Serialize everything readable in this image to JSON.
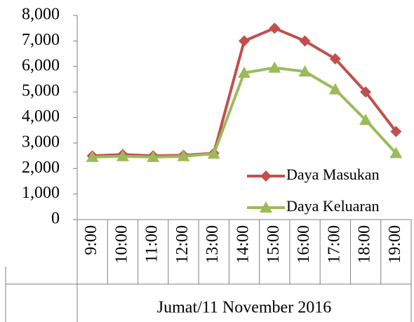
{
  "chart_data": {
    "type": "line",
    "x_label": "Jumat/11 November 2016",
    "categories": [
      "9:00",
      "10:00",
      "11:00",
      "12:00",
      "13:00",
      "14:00",
      "15:00",
      "16:00",
      "17:00",
      "18:00",
      "19:00"
    ],
    "series": [
      {
        "name": "Daya Masukan",
        "color": "#c0504d",
        "marker": "diamond",
        "values": [
          2500,
          2550,
          2500,
          2520,
          2600,
          7000,
          7500,
          7000,
          6300,
          5000,
          3450
        ]
      },
      {
        "name": "Daya Keluaran",
        "color": "#9bbb59",
        "marker": "triangle",
        "values": [
          2450,
          2480,
          2450,
          2480,
          2580,
          5750,
          5950,
          5800,
          5100,
          3900,
          2600
        ]
      }
    ],
    "ylim": [
      0,
      8000
    ],
    "yticks": [
      0,
      {
        "value": 1000,
        "label": "1,000"
      },
      {
        "value": 2000,
        "label": "2,000"
      },
      {
        "value": 3000,
        "label": "3,000"
      },
      {
        "value": 4000,
        "label": "4,000"
      },
      {
        "value": 5000,
        "label": "5,000"
      },
      {
        "value": 6000,
        "label": "6,000"
      },
      {
        "value": 7000,
        "label": "7,000"
      },
      {
        "value": 8000,
        "label": "8,000"
      }
    ],
    "legend": "lower right"
  }
}
